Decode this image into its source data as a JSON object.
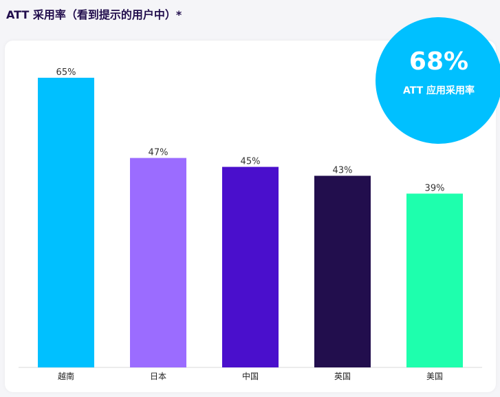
{
  "page": {
    "title": "ATT 采用率（看到提示的用户中）*"
  },
  "badge": {
    "value": "68%",
    "label": "ATT 应用采用率"
  },
  "chart_data": {
    "type": "bar",
    "title": "",
    "categories": [
      "越南",
      "日本",
      "中国",
      "英国",
      "美国"
    ],
    "values": [
      65,
      47,
      45,
      43,
      39
    ],
    "value_labels": [
      "65%",
      "47%",
      "45%",
      "43%",
      "39%"
    ],
    "colors": [
      "#00c0ff",
      "#9b6cff",
      "#4a0fcc",
      "#220e4d",
      "#1effad"
    ],
    "xlabel": "",
    "ylabel": "",
    "ylim": [
      0,
      100
    ],
    "grid": false,
    "legend": "none"
  }
}
